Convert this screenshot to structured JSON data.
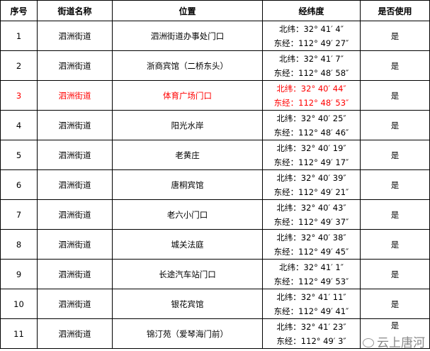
{
  "headers": [
    "序号",
    "街道名称",
    "位置",
    "经纬度",
    "是否使用"
  ],
  "highlight_color": "#ff0000",
  "rows": [
    {
      "no": "1",
      "street": "泗洲街道",
      "location": "泗洲街道办事处门口",
      "lat": "北纬：32° 41′ 4″",
      "lon": "东经：112° 49′ 27″",
      "used": "是"
    },
    {
      "no": "2",
      "street": "泗洲街道",
      "location": "浙商宾馆（二桥东头）",
      "lat": "北纬：32° 41′ 7″",
      "lon": "东经：112° 48′ 58″",
      "used": "是"
    },
    {
      "no": "3",
      "street": "泗洲街道",
      "location": "体育广场门口",
      "lat": "北纬：32° 40′ 44″",
      "lon": "东经：112° 48′ 53″",
      "used": "是"
    },
    {
      "no": "4",
      "street": "泗洲街道",
      "location": "阳光水岸",
      "lat": "北纬：32° 40′ 25″",
      "lon": "东经：112° 48′ 46″",
      "used": "是"
    },
    {
      "no": "5",
      "street": "泗洲街道",
      "location": "老黄庄",
      "lat": "北纬：32° 40′ 19″",
      "lon": "东经：112° 49′ 17″",
      "used": "是"
    },
    {
      "no": "6",
      "street": "泗洲街道",
      "location": "唐桐宾馆",
      "lat": "北纬：32° 40′ 39″",
      "lon": "东经：112° 49′ 21″",
      "used": "是"
    },
    {
      "no": "7",
      "street": "泗洲街道",
      "location": "老六小门口",
      "lat": "北纬：32° 40′ 43″",
      "lon": "东经：112° 49′ 37″",
      "used": "是"
    },
    {
      "no": "8",
      "street": "泗洲街道",
      "location": "城关法庭",
      "lat": "北纬：32° 40′ 38″",
      "lon": "东经：112° 49′ 45″",
      "used": "是"
    },
    {
      "no": "9",
      "street": "泗洲街道",
      "location": "长途汽车站门口",
      "lat": "北纬：32° 41′ 1″",
      "lon": "东经：112° 49′ 53″",
      "used": "是"
    },
    {
      "no": "10",
      "street": "泗洲街道",
      "location": "银花宾馆",
      "lat": "北纬：32° 41′ 11″",
      "lon": "东经：112° 49′ 41″",
      "used": "是"
    },
    {
      "no": "11",
      "street": "泗洲街道",
      "location": "锦汀苑（爱琴海门前）",
      "lat": "北纬：32° 41′ 23″",
      "lon": "东经：112° 49′ 3″",
      "used": "是"
    }
  ],
  "watermark": "云上唐河"
}
